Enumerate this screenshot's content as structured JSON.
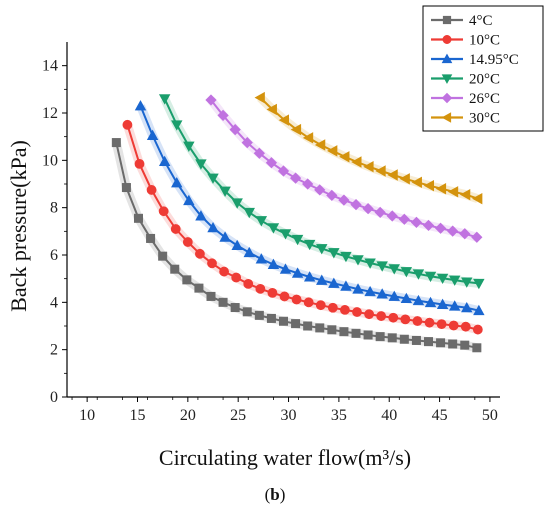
{
  "caption": {
    "open": "(",
    "letter": "b",
    "close": ")"
  },
  "chart_data": {
    "type": "line",
    "title": "",
    "xlabel": "Circulating water flow(m³/s)",
    "ylabel": "Back pressure(kPa)",
    "xlim": [
      8,
      51
    ],
    "ylim": [
      0,
      15
    ],
    "xticks": [
      10,
      15,
      20,
      25,
      30,
      35,
      40,
      45,
      50
    ],
    "yticks": [
      0,
      2,
      4,
      6,
      8,
      10,
      12,
      14
    ],
    "legend_position": "top-right",
    "grid": false,
    "series": [
      {
        "name": "4°C",
        "color": "#6b6b6b",
        "marker": "square",
        "x": [
          12.9,
          13.9,
          15.1,
          16.3,
          17.5,
          18.7,
          19.9,
          21.1,
          22.3,
          23.5,
          24.7,
          25.9,
          27.1,
          28.3,
          29.5,
          30.7,
          31.9,
          33.1,
          34.3,
          35.5,
          36.7,
          37.9,
          39.1,
          40.3,
          41.5,
          42.7,
          43.9,
          45.1,
          46.3,
          47.5,
          48.7
        ],
        "y": [
          10.75,
          8.85,
          7.55,
          6.7,
          5.95,
          5.4,
          4.95,
          4.6,
          4.25,
          4.0,
          3.78,
          3.6,
          3.45,
          3.32,
          3.2,
          3.1,
          3.0,
          2.92,
          2.84,
          2.76,
          2.69,
          2.62,
          2.55,
          2.5,
          2.44,
          2.39,
          2.34,
          2.29,
          2.24,
          2.19,
          2.08
        ]
      },
      {
        "name": "10°C",
        "color": "#ee3b35",
        "marker": "circle",
        "x": [
          14.0,
          15.2,
          16.4,
          17.6,
          18.8,
          20.0,
          21.2,
          22.4,
          23.6,
          24.8,
          26.0,
          27.2,
          28.4,
          29.6,
          30.8,
          32.0,
          33.2,
          34.4,
          35.6,
          36.8,
          38.0,
          39.2,
          40.4,
          41.6,
          42.8,
          44.0,
          45.2,
          46.4,
          47.6,
          48.8
        ],
        "y": [
          11.5,
          9.85,
          8.75,
          7.85,
          7.1,
          6.55,
          6.05,
          5.65,
          5.3,
          5.05,
          4.78,
          4.57,
          4.4,
          4.25,
          4.12,
          4.0,
          3.88,
          3.77,
          3.68,
          3.59,
          3.5,
          3.42,
          3.35,
          3.28,
          3.21,
          3.14,
          3.08,
          3.02,
          2.97,
          2.85
        ]
      },
      {
        "name": "14.95°C",
        "color": "#1a66d0",
        "marker": "triangle-up",
        "x": [
          15.3,
          16.5,
          17.7,
          18.9,
          20.1,
          21.3,
          22.5,
          23.7,
          24.9,
          26.1,
          27.3,
          28.5,
          29.7,
          30.9,
          32.1,
          33.3,
          34.5,
          35.7,
          36.9,
          38.1,
          39.3,
          40.5,
          41.7,
          42.9,
          44.1,
          45.3,
          46.5,
          47.7,
          48.9
        ],
        "y": [
          12.3,
          11.05,
          9.95,
          9.05,
          8.3,
          7.65,
          7.15,
          6.75,
          6.4,
          6.1,
          5.83,
          5.6,
          5.4,
          5.23,
          5.07,
          4.93,
          4.8,
          4.68,
          4.56,
          4.45,
          4.35,
          4.25,
          4.16,
          4.07,
          3.99,
          3.91,
          3.84,
          3.77,
          3.65
        ]
      },
      {
        "name": "20°C",
        "color": "#1a9e6c",
        "marker": "triangle-down",
        "x": [
          17.7,
          18.9,
          20.1,
          21.3,
          22.5,
          23.7,
          24.9,
          26.1,
          27.3,
          28.5,
          29.7,
          30.9,
          32.1,
          33.3,
          34.5,
          35.7,
          36.9,
          38.1,
          39.3,
          40.5,
          41.7,
          42.9,
          44.1,
          45.3,
          46.5,
          47.7,
          48.9
        ],
        "y": [
          12.6,
          11.5,
          10.6,
          9.85,
          9.25,
          8.7,
          8.2,
          7.8,
          7.45,
          7.15,
          6.9,
          6.66,
          6.45,
          6.27,
          6.1,
          5.94,
          5.8,
          5.66,
          5.54,
          5.42,
          5.3,
          5.2,
          5.1,
          5.02,
          4.94,
          4.86,
          4.8
        ]
      },
      {
        "name": "26°C",
        "color": "#c072e0",
        "marker": "diamond",
        "x": [
          22.3,
          23.5,
          24.7,
          25.9,
          27.1,
          28.3,
          29.5,
          30.7,
          31.9,
          33.1,
          34.3,
          35.5,
          36.7,
          37.9,
          39.1,
          40.3,
          41.5,
          42.7,
          43.9,
          45.1,
          46.3,
          47.5,
          48.7
        ],
        "y": [
          12.55,
          11.9,
          11.3,
          10.75,
          10.3,
          9.9,
          9.55,
          9.25,
          9.0,
          8.75,
          8.52,
          8.32,
          8.13,
          7.96,
          7.8,
          7.65,
          7.51,
          7.38,
          7.25,
          7.13,
          7.01,
          6.9,
          6.75
        ]
      },
      {
        "name": "30°C",
        "color": "#d4930d",
        "marker": "triangle-left",
        "x": [
          27.2,
          28.4,
          29.6,
          30.8,
          32.0,
          33.2,
          34.4,
          35.6,
          36.8,
          38.0,
          39.2,
          40.4,
          41.6,
          42.8,
          44.0,
          45.2,
          46.4,
          47.6,
          48.8
        ],
        "y": [
          12.65,
          12.15,
          11.7,
          11.3,
          10.95,
          10.65,
          10.4,
          10.15,
          9.93,
          9.73,
          9.55,
          9.38,
          9.22,
          9.07,
          8.93,
          8.8,
          8.67,
          8.55,
          8.38
        ]
      }
    ]
  }
}
